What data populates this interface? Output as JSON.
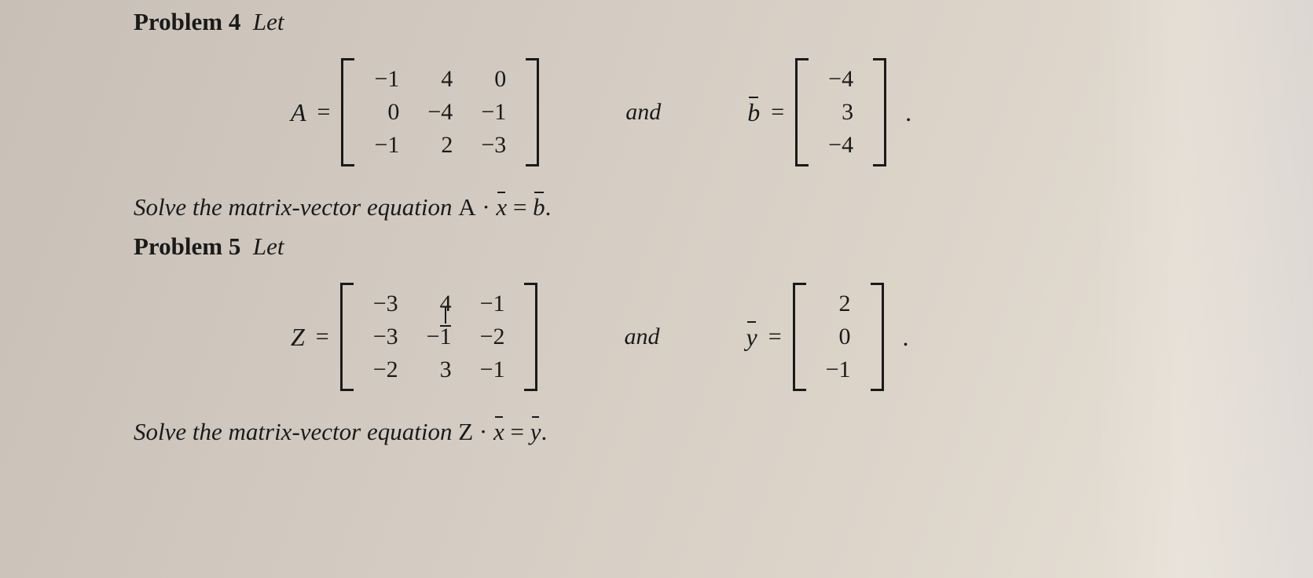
{
  "colors": {
    "text": "#1a1a1a",
    "bg_gradient_from": "#c8c0b6",
    "bg_gradient_to": "#e8e2d8",
    "bracket": "#1a1a1a"
  },
  "typography": {
    "base_family": "Georgia, serif",
    "header_size_pt": 23,
    "body_size_pt": 22,
    "matrix_cell_size_pt": 22
  },
  "problems": {
    "p4": {
      "label_prefix": "Problem",
      "number": "4",
      "let_word": "Let",
      "matrix_var": "A",
      "eq": "=",
      "matrix": {
        "rows": [
          [
            "−1",
            "4",
            "0"
          ],
          [
            "0",
            "−4",
            "−1"
          ],
          [
            "−1",
            "2",
            "−3"
          ]
        ],
        "col_align": [
          "right",
          "right",
          "right"
        ]
      },
      "and_word": "and",
      "vector_var": "b",
      "vector_eq": "=",
      "vector": {
        "rows": [
          [
            "−4"
          ],
          [
            "3"
          ],
          [
            "−4"
          ]
        ]
      },
      "solve_text_pre": "Solve the matrix-vector equation ",
      "solve_expr_A": "A",
      "solve_dot": "·",
      "solve_x": "x",
      "solve_eq": "=",
      "solve_b": "b",
      "solve_expr_post": "."
    },
    "p5": {
      "label_prefix": "Problem",
      "number": "5",
      "let_word": "Let",
      "matrix_var": "Z",
      "eq": "=",
      "matrix": {
        "rows": [
          [
            "−3",
            "4",
            "−1"
          ],
          [
            "−3",
            "−1",
            "−2"
          ],
          [
            "−2",
            "3",
            "−1"
          ]
        ],
        "col_align": [
          "right",
          "right",
          "right"
        ],
        "cursor_cell": [
          0,
          1
        ]
      },
      "and_word": "and",
      "vector_var": "y",
      "vector_eq": "=",
      "vector": {
        "rows": [
          [
            "2"
          ],
          [
            "0"
          ],
          [
            "−1"
          ]
        ]
      },
      "solve_text_pre": "Solve the matrix-vector equation ",
      "solve_expr_Z": "Z",
      "solve_dot": "·",
      "solve_x": "x",
      "solve_eq": "=",
      "solve_y": "y",
      "solve_expr_post": "."
    }
  }
}
